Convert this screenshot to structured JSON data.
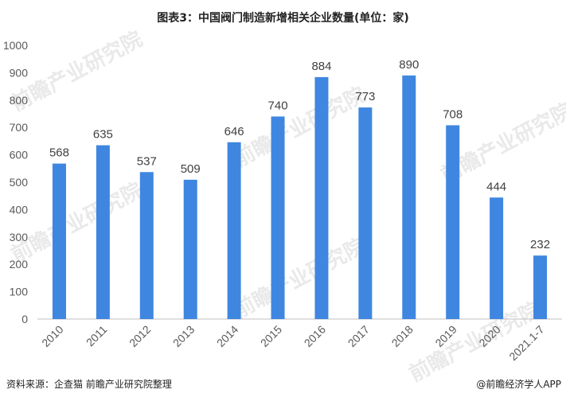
{
  "chart_data": {
    "type": "bar",
    "title": "图表3：中国阀门制造新增相关企业数量(单位：家)",
    "categories": [
      "2010",
      "2011",
      "2012",
      "2013",
      "2014",
      "2015",
      "2016",
      "2017",
      "2018",
      "2019",
      "2020",
      "2021.1-7"
    ],
    "values": [
      568,
      635,
      537,
      509,
      646,
      740,
      884,
      773,
      890,
      708,
      444,
      232
    ],
    "ylim": [
      0,
      1000
    ],
    "yticks": [
      0,
      100,
      200,
      300,
      400,
      500,
      600,
      700,
      800,
      900,
      1000
    ],
    "grid": false,
    "legend": "none",
    "bar_color": "#3f86e0"
  },
  "footer": {
    "source": "资料来源：企查猫 前瞻产业研究院整理",
    "brand": "@前瞻经济学人APP"
  },
  "watermark": "前瞻产业研究院"
}
